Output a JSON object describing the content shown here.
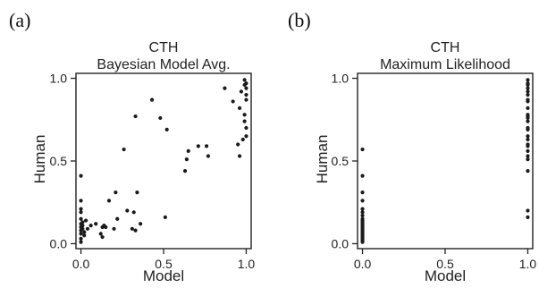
{
  "panels": [
    {
      "letter": "(a)"
    },
    {
      "letter": "(b)"
    }
  ],
  "chart_data": [
    {
      "type": "scatter",
      "title": "CTH",
      "subtitle": "Bayesian Model Avg.",
      "xlabel": "Model",
      "ylabel": "Human",
      "xlim": [
        -0.03,
        1.03
      ],
      "ylim": [
        -0.03,
        1.03
      ],
      "xticks": [
        0.0,
        0.5,
        1.0
      ],
      "xtick_labels": [
        "0.0",
        "0.5",
        "1.0"
      ],
      "yticks": [
        0.0,
        0.5,
        1.0
      ],
      "ytick_labels": [
        "0.0",
        "0.5",
        "1.0"
      ],
      "grid": false,
      "points": [
        [
          0.0,
          0.41
        ],
        [
          0.0,
          0.26
        ],
        [
          0.0,
          0.21
        ],
        [
          0.0,
          0.19
        ],
        [
          0.0,
          0.15
        ],
        [
          0.0,
          0.12
        ],
        [
          0.0,
          0.1
        ],
        [
          0.0,
          0.08
        ],
        [
          0.0,
          0.06
        ],
        [
          0.0,
          0.03
        ],
        [
          0.0,
          0.01
        ],
        [
          0.01,
          0.13
        ],
        [
          0.01,
          0.11
        ],
        [
          0.01,
          0.09
        ],
        [
          0.02,
          0.07
        ],
        [
          0.02,
          0.05
        ],
        [
          0.03,
          0.14
        ],
        [
          0.04,
          0.09
        ],
        [
          0.06,
          0.11
        ],
        [
          0.09,
          0.12
        ],
        [
          0.12,
          0.06
        ],
        [
          0.13,
          0.04
        ],
        [
          0.13,
          0.1
        ],
        [
          0.14,
          0.11
        ],
        [
          0.15,
          0.1
        ],
        [
          0.17,
          0.26
        ],
        [
          0.2,
          0.09
        ],
        [
          0.21,
          0.31
        ],
        [
          0.22,
          0.15
        ],
        [
          0.26,
          0.57
        ],
        [
          0.28,
          0.2
        ],
        [
          0.31,
          0.09
        ],
        [
          0.33,
          0.08
        ],
        [
          0.32,
          0.19
        ],
        [
          0.34,
          0.31
        ],
        [
          0.36,
          0.12
        ],
        [
          0.33,
          0.77
        ],
        [
          0.43,
          0.87
        ],
        [
          0.48,
          0.76
        ],
        [
          0.52,
          0.69
        ],
        [
          0.51,
          0.16
        ],
        [
          0.63,
          0.44
        ],
        [
          0.64,
          0.51
        ],
        [
          0.65,
          0.56
        ],
        [
          0.71,
          0.59
        ],
        [
          0.76,
          0.59
        ],
        [
          0.77,
          0.53
        ],
        [
          0.87,
          0.94
        ],
        [
          0.92,
          0.86
        ],
        [
          0.95,
          0.6
        ],
        [
          0.96,
          0.53
        ],
        [
          0.96,
          0.82
        ],
        [
          0.97,
          0.92
        ],
        [
          0.99,
          0.99
        ],
        [
          0.99,
          0.96
        ],
        [
          1.0,
          0.97
        ],
        [
          1.0,
          0.94
        ],
        [
          1.0,
          0.9
        ],
        [
          1.0,
          0.87
        ],
        [
          0.99,
          0.78
        ],
        [
          0.99,
          0.74
        ],
        [
          1.0,
          0.7
        ],
        [
          1.0,
          0.65
        ],
        [
          0.98,
          0.63
        ]
      ]
    },
    {
      "type": "scatter",
      "title": "CTH",
      "subtitle": "Maximum Likelihood",
      "xlabel": "Model",
      "ylabel": "Human",
      "xlim": [
        -0.03,
        1.03
      ],
      "ylim": [
        -0.03,
        1.03
      ],
      "xticks": [
        0.0,
        0.5,
        1.0
      ],
      "xtick_labels": [
        "0.0",
        "0.5",
        "1.0"
      ],
      "yticks": [
        0.0,
        0.5,
        1.0
      ],
      "ytick_labels": [
        "0.0",
        "0.5",
        "1.0"
      ],
      "grid": false,
      "points": [
        [
          0.0,
          0.57
        ],
        [
          0.0,
          0.41
        ],
        [
          0.0,
          0.31
        ],
        [
          0.0,
          0.26
        ],
        [
          0.0,
          0.21
        ],
        [
          0.0,
          0.19
        ],
        [
          0.0,
          0.17
        ],
        [
          0.0,
          0.15
        ],
        [
          0.0,
          0.14
        ],
        [
          0.0,
          0.13
        ],
        [
          0.0,
          0.12
        ],
        [
          0.0,
          0.11
        ],
        [
          0.0,
          0.1
        ],
        [
          0.0,
          0.09
        ],
        [
          0.0,
          0.08
        ],
        [
          0.0,
          0.07
        ],
        [
          0.0,
          0.06
        ],
        [
          0.0,
          0.05
        ],
        [
          0.0,
          0.04
        ],
        [
          0.0,
          0.03
        ],
        [
          0.0,
          0.02
        ],
        [
          0.0,
          0.01
        ],
        [
          1.0,
          0.99
        ],
        [
          1.0,
          0.97
        ],
        [
          1.0,
          0.96
        ],
        [
          1.0,
          0.94
        ],
        [
          1.0,
          0.92
        ],
        [
          1.0,
          0.9
        ],
        [
          1.0,
          0.87
        ],
        [
          1.0,
          0.86
        ],
        [
          1.0,
          0.82
        ],
        [
          1.0,
          0.78
        ],
        [
          1.0,
          0.77
        ],
        [
          1.0,
          0.76
        ],
        [
          1.0,
          0.74
        ],
        [
          1.0,
          0.7
        ],
        [
          1.0,
          0.69
        ],
        [
          1.0,
          0.65
        ],
        [
          1.0,
          0.63
        ],
        [
          1.0,
          0.6
        ],
        [
          1.0,
          0.59
        ],
        [
          1.0,
          0.56
        ],
        [
          1.0,
          0.53
        ],
        [
          1.0,
          0.51
        ],
        [
          1.0,
          0.44
        ],
        [
          1.0,
          0.2
        ],
        [
          1.0,
          0.16
        ]
      ]
    }
  ]
}
